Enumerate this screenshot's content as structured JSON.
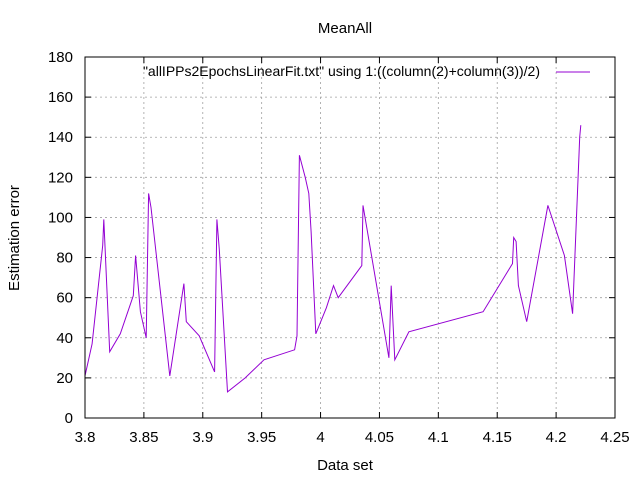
{
  "chart_data": {
    "type": "line",
    "title": "MeanAll",
    "xlabel": "Data set",
    "ylabel": "Estimation error",
    "xlim": [
      3.8,
      4.25
    ],
    "ylim": [
      0,
      180
    ],
    "x_ticks": [
      3.8,
      3.85,
      3.9,
      3.95,
      4.0,
      4.05,
      4.1,
      4.15,
      4.2,
      4.25
    ],
    "x_tick_labels": [
      "3.8",
      "3.85",
      "3.9",
      "3.95",
      "4",
      "4.05",
      "4.1",
      "4.15",
      "4.2",
      "4.25"
    ],
    "y_ticks": [
      0,
      20,
      40,
      60,
      80,
      100,
      120,
      140,
      160,
      180
    ],
    "y_tick_labels": [
      "0",
      "20",
      "40",
      "60",
      "80",
      "100",
      "120",
      "140",
      "160",
      "180"
    ],
    "grid": true,
    "legend_position": "top-right",
    "series": [
      {
        "name": "\"allIPPs2EpochsLinearFit.txt\" using 1:((column(2)+column(3))/2)",
        "color": "#9400d3",
        "x": [
          3.8,
          3.806,
          3.815,
          3.816,
          3.821,
          3.83,
          3.841,
          3.843,
          3.847,
          3.852,
          3.854,
          3.856,
          3.872,
          3.884,
          3.886,
          3.897,
          3.91,
          3.912,
          3.914,
          3.921,
          3.936,
          3.952,
          3.978,
          3.98,
          3.982,
          3.987,
          3.99,
          3.992,
          3.996,
          4.005,
          4.011,
          4.015,
          4.035,
          4.036,
          4.058,
          4.06,
          4.063,
          4.075,
          4.138,
          4.163,
          4.164,
          4.166,
          4.168,
          4.175,
          4.193,
          4.207,
          4.214,
          4.22,
          4.221
        ],
        "y": [
          21,
          37,
          86,
          99,
          33,
          42,
          61,
          81,
          53,
          40,
          112,
          105,
          21,
          67,
          48,
          41,
          23,
          99,
          84,
          13,
          20,
          29,
          34,
          41,
          131,
          120,
          112,
          93,
          42,
          55,
          66,
          60,
          76,
          106,
          30,
          66,
          29,
          43,
          53,
          77,
          90,
          88,
          66,
          48,
          106,
          81,
          52,
          140,
          146
        ]
      }
    ]
  }
}
